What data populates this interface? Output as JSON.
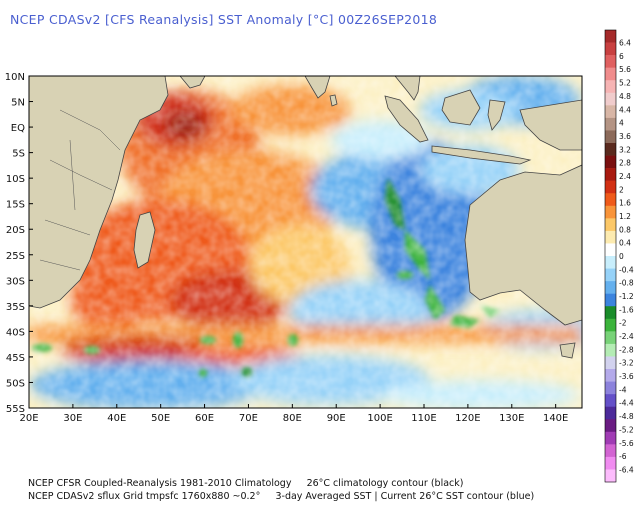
{
  "title": "NCEP CDASv2 [CFS Reanalysis] SST Anomaly [°C] 00Z26SEP2018",
  "footer": {
    "line1_left": "NCEP CFSR Coupled-Reanalysis 1981-2010 Climatology",
    "line1_right": "26°C climatology contour (black)",
    "line2_left": "NCEP CDASv2 sflux Grid tmpsfc 1760x880 ~0.2°",
    "line2_right": "3-day Averaged SST | Current 26°C SST contour (blue)"
  },
  "map": {
    "lat_labels": [
      "10N",
      "5N",
      "EQ",
      "5S",
      "10S",
      "15S",
      "20S",
      "25S",
      "30S",
      "35S",
      "40S",
      "45S",
      "50S",
      "55S"
    ],
    "lon_labels": [
      "20E",
      "30E",
      "40E",
      "50E",
      "60E",
      "70E",
      "80E",
      "90E",
      "100E",
      "110E",
      "120E",
      "130E",
      "140E"
    ],
    "lat_range": [
      -55,
      10
    ],
    "lon_range": [
      20,
      146
    ]
  },
  "colorbar": {
    "labels": [
      "6.4",
      "6",
      "5.6",
      "5.2",
      "4.8",
      "4.4",
      "4",
      "3.6",
      "3.2",
      "2.8",
      "2.4",
      "2",
      "1.6",
      "1.2",
      "0.8",
      "0.4",
      "0",
      "-0.4",
      "-0.8",
      "-1.2",
      "-1.6",
      "-2",
      "-2.4",
      "-2.8",
      "-3.2",
      "-3.6",
      "-4",
      "-4.4",
      "-4.8",
      "-5.2",
      "-5.6",
      "-6",
      "-6.4"
    ],
    "colors": [
      "#a52a2a",
      "#c84040",
      "#e06060",
      "#f08c8c",
      "#f6b4b4",
      "#f0cccc",
      "#d8b6a6",
      "#b49484",
      "#8c6a5a",
      "#5a2a1e",
      "#7a1010",
      "#a81a10",
      "#d23014",
      "#ef5a1a",
      "#f8943a",
      "#fcc868",
      "#fdebb0",
      "#ffffff",
      "#c8eefc",
      "#96d2f8",
      "#64b0ee",
      "#3c84de",
      "#1a8c2a",
      "#3cb43c",
      "#78d278",
      "#b4ecb4",
      "#d2d2ee",
      "#b4aaea",
      "#8c82dc",
      "#6450c8",
      "#4c2a9a",
      "#6a1c82",
      "#a03cb4",
      "#d264d2",
      "#f08cf0",
      "#fcbcfc"
    ]
  }
}
